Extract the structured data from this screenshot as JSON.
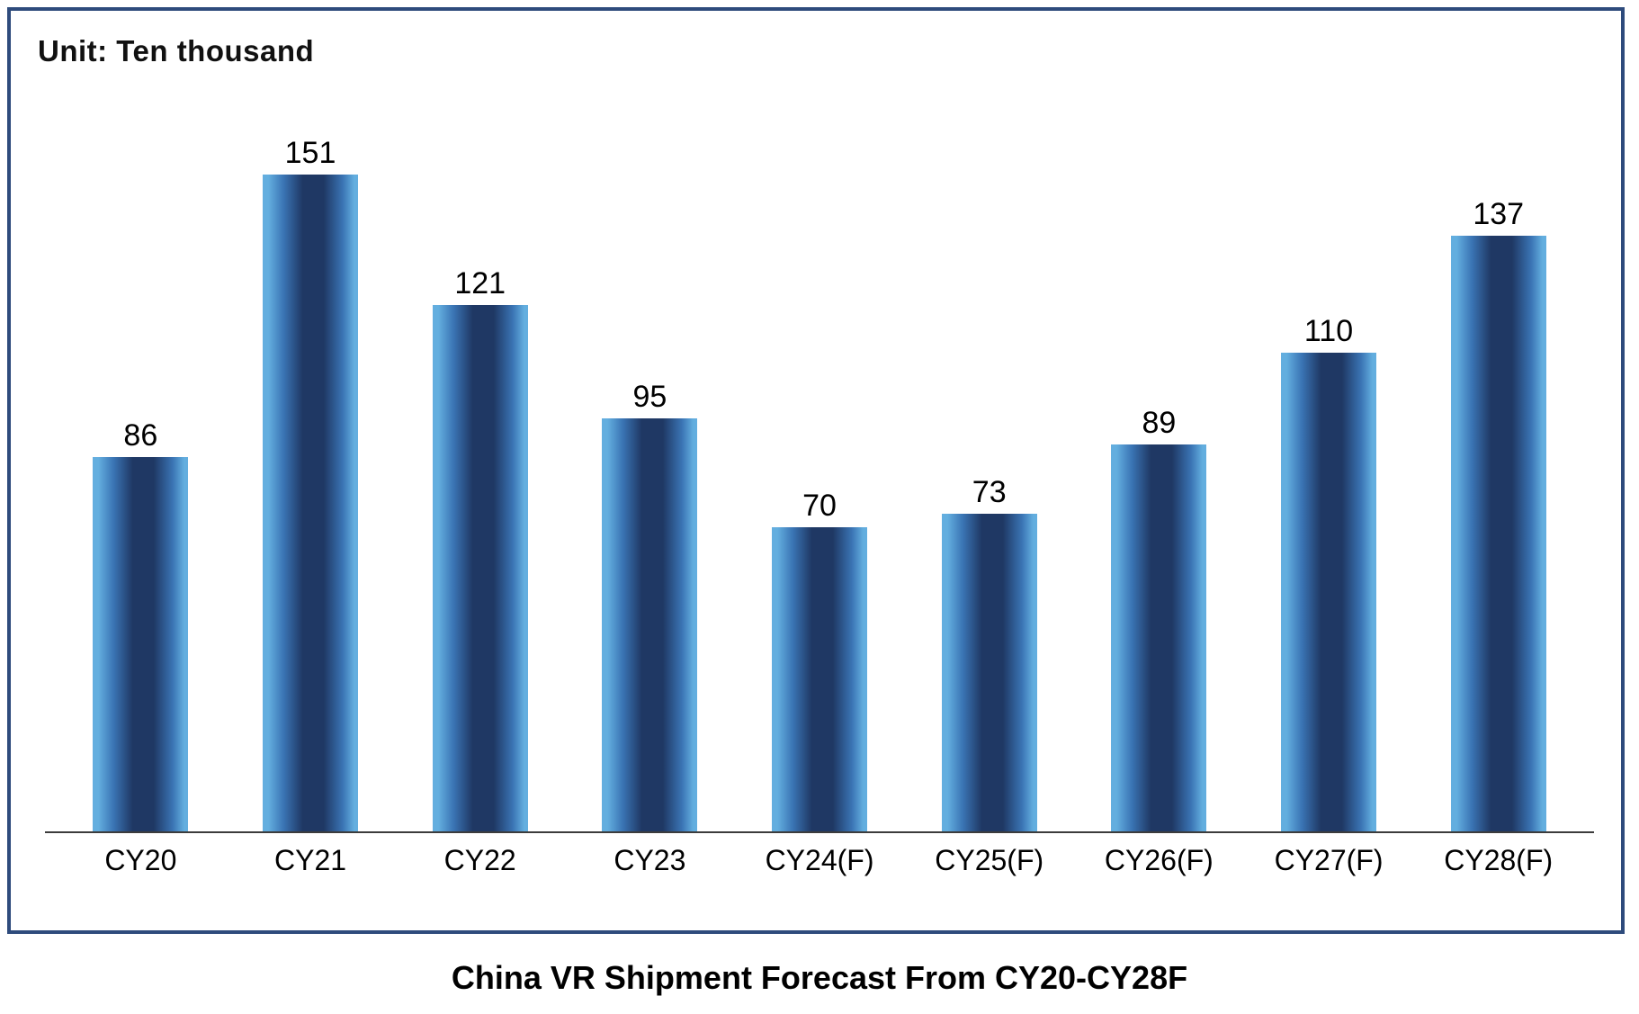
{
  "chart": {
    "unit_label": "Unit: Ten thousand"
  },
  "chart_data": {
    "type": "bar",
    "title": "China VR Shipment Forecast From CY20-CY28F",
    "unit": "Ten thousand",
    "categories": [
      "CY20",
      "CY21",
      "CY22",
      "CY23",
      "CY24(F)",
      "CY25(F)",
      "CY26(F)",
      "CY27(F)",
      "CY28(F)"
    ],
    "values": [
      86,
      151,
      121,
      95,
      70,
      73,
      89,
      110,
      137
    ],
    "ylim": [
      0,
      160
    ],
    "grid": false,
    "legend": "none",
    "data_labels": "above-bars",
    "colors": {
      "bar_light": "#63AEDF",
      "bar_dark": "#1F3864",
      "border": "#2E4B7C",
      "axis": "#3c3c3c"
    }
  }
}
